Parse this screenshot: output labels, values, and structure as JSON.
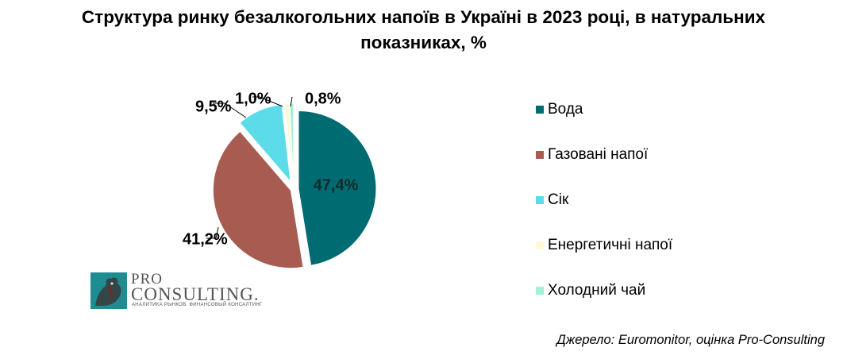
{
  "title_line1": "Структура ринку безалкогольних напоїв в Україні в 2023 році, в натуральних",
  "title_line2": "показниках, %",
  "source": "Джерело: Euromonitor, оцінка Pro-Consulting",
  "logo": {
    "pro": "PRO",
    "consulting": "CONSULTING.",
    "tagline": "АНАЛИТИКА РЫНКОВ. ФИНАНСОВЫЙ КОНСАЛТИНГ"
  },
  "chart_data": {
    "type": "pie",
    "title": "Структура ринку безалкогольних напоїв в Україні в 2023 році, в натуральних показниках, %",
    "categories": [
      "Вода",
      "Газовані напої",
      "Сік",
      "Енергетичні напої",
      "Холодний чай"
    ],
    "values": [
      47.4,
      41.2,
      9.5,
      1.0,
      0.8
    ],
    "labels": [
      "47,4%",
      "41,2%",
      "9,5%",
      "1,0%",
      "0,8%"
    ],
    "colors": [
      "#006b70",
      "#a85b50",
      "#5cdbe8",
      "#fff8d6",
      "#a0f2d4"
    ],
    "exploded": true,
    "legend_position": "right"
  }
}
